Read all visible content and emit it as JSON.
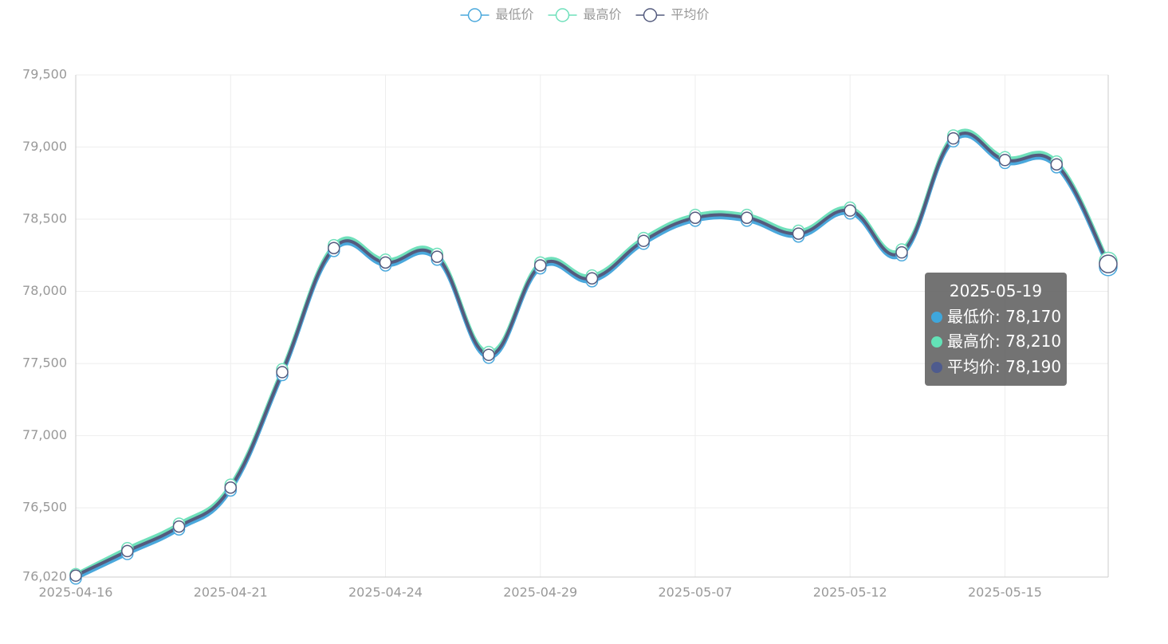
{
  "chart_data": {
    "type": "line",
    "categories": [
      "2025-04-16",
      null,
      null,
      "2025-04-21",
      null,
      null,
      "2025-04-24",
      null,
      null,
      "2025-04-29",
      null,
      null,
      "2025-05-07",
      null,
      null,
      "2025-05-12",
      null,
      null,
      "2025-05-15",
      null,
      null
    ],
    "series": [
      {
        "name": "最低价",
        "color": "#4aa8dc",
        "values": [
          76010,
          76180,
          76350,
          76620,
          77420,
          78280,
          78180,
          78220,
          77540,
          78160,
          78070,
          78330,
          78490,
          78490,
          78380,
          78540,
          78250,
          79040,
          78890,
          78860,
          78170
        ]
      },
      {
        "name": "最高价",
        "color": "#6fe0bb",
        "values": [
          76040,
          76220,
          76390,
          76660,
          77460,
          78320,
          78220,
          78260,
          77580,
          78200,
          78110,
          78370,
          78530,
          78530,
          78420,
          78580,
          78290,
          79080,
          78930,
          78900,
          78210
        ]
      },
      {
        "name": "平均价",
        "color": "#545b7e",
        "values": [
          76030,
          76200,
          76370,
          76640,
          77440,
          78300,
          78200,
          78240,
          77560,
          78180,
          78090,
          78350,
          78510,
          78510,
          78400,
          78560,
          78270,
          79060,
          78910,
          78880,
          78190
        ]
      }
    ],
    "ylim": [
      76020,
      79500
    ],
    "yticks": [
      {
        "value": 76020,
        "label": "76,020"
      },
      {
        "value": 76500,
        "label": "76,500"
      },
      {
        "value": 77000,
        "label": "77,000"
      },
      {
        "value": 77500,
        "label": "77,500"
      },
      {
        "value": 78000,
        "label": "78,000"
      },
      {
        "value": 78500,
        "label": "78,500"
      },
      {
        "value": 79000,
        "label": "79,000"
      },
      {
        "value": 79500,
        "label": "79,500"
      }
    ],
    "grid": true,
    "legend": "top",
    "tooltip": {
      "title": "2025-05-19",
      "items": [
        "最低价: 78,170",
        "最高价: 78,210",
        "平均价: 78,190"
      ],
      "colors": [
        "#3fa7dc",
        "#63e2b7",
        "#4e5b8e"
      ]
    }
  }
}
